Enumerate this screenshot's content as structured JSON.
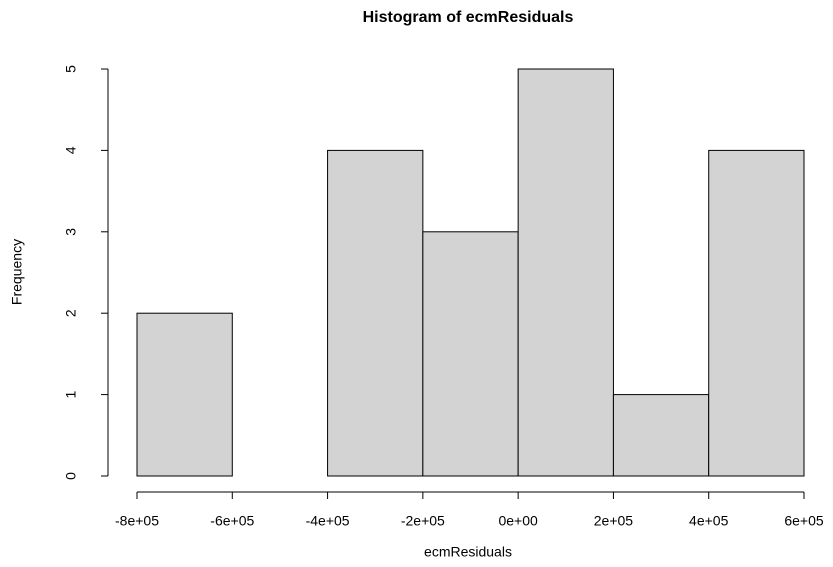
{
  "chart_data": {
    "type": "histogram",
    "title": "Histogram of ecmResiduals",
    "x_label": "ecmResiduals",
    "y_label": "Frequency",
    "bins": [
      -800000,
      -600000,
      -400000,
      -200000,
      0,
      200000,
      400000,
      600000
    ],
    "values": [
      2,
      0,
      4,
      3,
      5,
      1,
      4
    ],
    "color": "#d3d3d3",
    "xlim": [
      -800000,
      600000
    ],
    "xticks": [
      {
        "value": -800000,
        "label": "-8e+05"
      },
      {
        "value": -600000,
        "label": "-6e+05"
      },
      {
        "value": -400000,
        "label": "-4e+05"
      },
      {
        "value": -200000,
        "label": "-2e+05"
      },
      {
        "value": 0,
        "label": "0e+00"
      },
      {
        "value": 200000,
        "label": "2e+05"
      },
      {
        "value": 400000,
        "label": "4e+05"
      },
      {
        "value": 600000,
        "label": "6e+05"
      }
    ],
    "ylim": [
      0,
      5
    ],
    "yticks": [
      0,
      1,
      2,
      3,
      4,
      5
    ]
  }
}
